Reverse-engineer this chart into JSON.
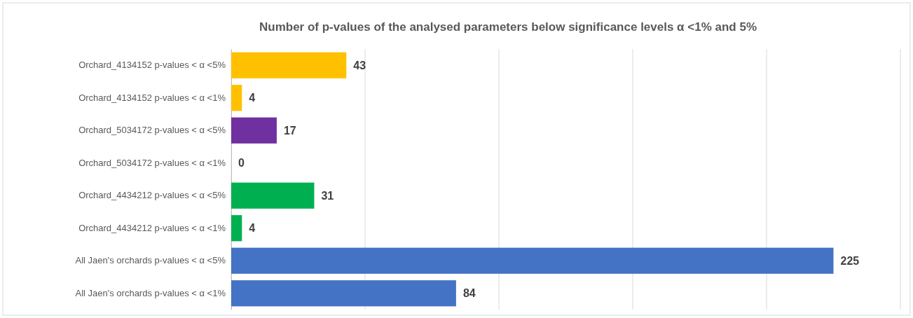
{
  "chart_data": {
    "type": "bar",
    "orientation": "horizontal",
    "title": "Number of p-values of the analysed parameters below significance levels  α <1% and 5%",
    "categories": [
      "Orchard_4134152 p-values < α <5%",
      "Orchard_4134152 p-values < α <1%",
      "Orchard_5034172 p-values < α <5%",
      "Orchard_5034172 p-values < α <1%",
      "Orchard_4434212 p-values < α <5%",
      "Orchard_4434212 p-values < α <1%",
      "All Jaen's orchards p-values < α <5%",
      "All Jaen's orchards p-values < α <1%"
    ],
    "values": [
      43,
      4,
      17,
      0,
      31,
      4,
      225,
      84
    ],
    "colors": [
      "#ffc000",
      "#ffc000",
      "#7030a0",
      "#7030a0",
      "#00b050",
      "#00b050",
      "#4472c4",
      "#4472c4"
    ],
    "xlim": [
      0,
      250
    ],
    "xticks": [
      {
        "value": 0,
        "label": null
      },
      {
        "value": 50,
        "label": null
      },
      {
        "value": 100,
        "label": null
      },
      {
        "value": 150,
        "label": null
      },
      {
        "value": 200,
        "label": null
      },
      {
        "value": 250,
        "label": null
      }
    ],
    "grid": "x",
    "tick_labels": "y",
    "data_labels": true
  }
}
